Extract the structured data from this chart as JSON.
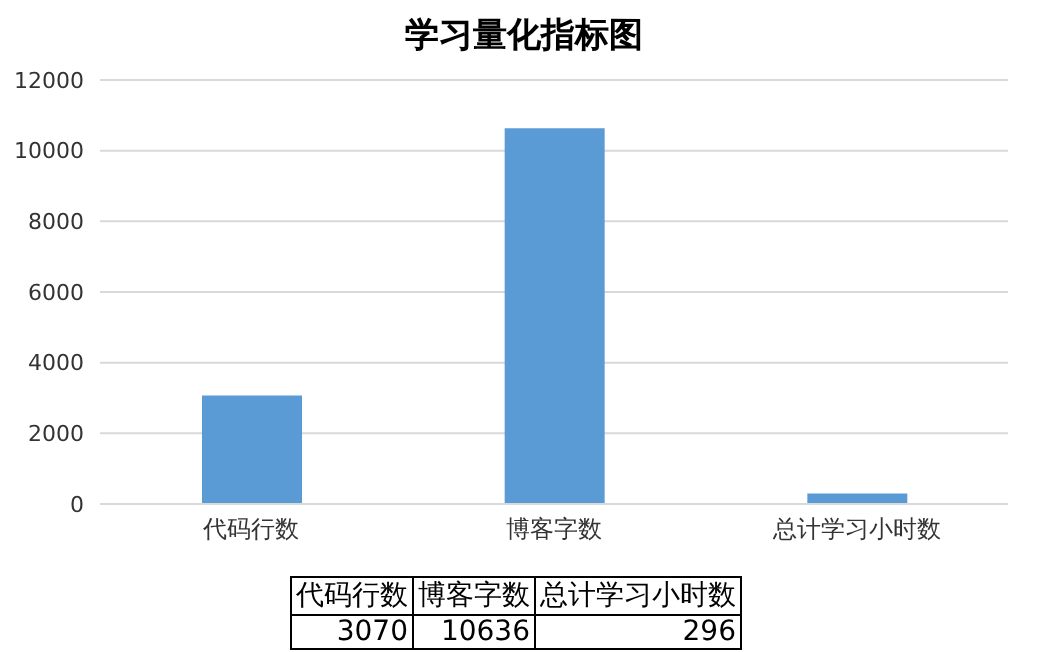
{
  "chart_data": {
    "type": "bar",
    "title": "学习量化指标图",
    "categories": [
      "代码行数",
      "博客字数",
      "总计学习小时数"
    ],
    "values": [
      3070,
      10636,
      296
    ],
    "color": "#5b9bd5",
    "ylim": [
      0,
      12000
    ],
    "yticks": [
      0,
      2000,
      4000,
      6000,
      8000,
      10000,
      12000
    ],
    "grid": "y",
    "data_labels": true
  }
}
